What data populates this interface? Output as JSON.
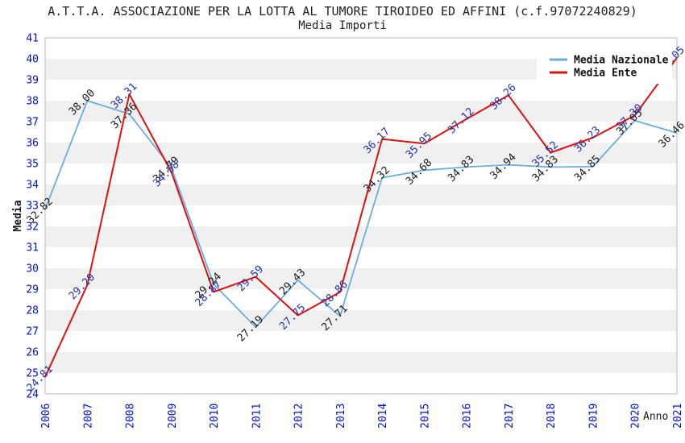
{
  "chart_data": {
    "type": "line",
    "title": "A.T.T.A. ASSOCIAZIONE PER LA LOTTA AL TUMORE TIROIDEO ED AFFINI (c.f.97072240829)",
    "subtitle": "Media Importi",
    "xlabel": "Anno",
    "ylabel": "Media",
    "ylim": [
      24,
      41
    ],
    "y_ticks": [
      24,
      25,
      26,
      27,
      28,
      29,
      30,
      31,
      32,
      33,
      34,
      35,
      36,
      37,
      38,
      39,
      40,
      41
    ],
    "categories": [
      "2006",
      "2007",
      "2008",
      "2009",
      "2010",
      "2011",
      "2012",
      "2013",
      "2014",
      "2015",
      "2016",
      "2017",
      "2018",
      "2019",
      "2020",
      "2021"
    ],
    "series": [
      {
        "name": "Media Nazionale",
        "color": "#6aaede",
        "label_color": "#1a1a1a",
        "values": [
          32.82,
          38.0,
          37.36,
          34.79,
          29.24,
          27.19,
          29.43,
          27.71,
          34.32,
          34.68,
          34.83,
          34.94,
          34.83,
          34.85,
          37.05,
          36.46
        ]
      },
      {
        "name": "Media Ente",
        "color": "#dd1111",
        "label_color": "#2233aa",
        "values": [
          24.81,
          29.2,
          38.31,
          34.58,
          28.87,
          29.59,
          27.75,
          28.86,
          36.17,
          35.95,
          37.12,
          38.26,
          35.52,
          36.23,
          37.3,
          40.05
        ]
      }
    ],
    "legend_position": "top-right",
    "grid": "horizontal-bands",
    "band_colors": [
      "#ffffff",
      "#f0f0f0"
    ],
    "plot_border_color": "#b8b8b8",
    "axis_tick_color": "#0011cc",
    "axis_title_color": "#1a1a1a"
  }
}
